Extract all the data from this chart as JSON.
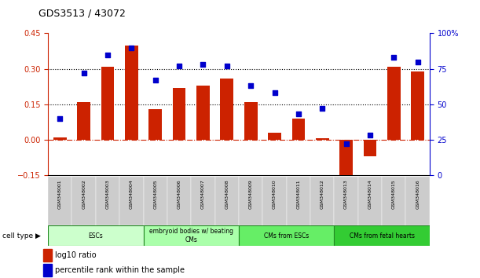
{
  "title": "GDS3513 / 43072",
  "samples": [
    "GSM348001",
    "GSM348002",
    "GSM348003",
    "GSM348004",
    "GSM348005",
    "GSM348006",
    "GSM348007",
    "GSM348008",
    "GSM348009",
    "GSM348010",
    "GSM348011",
    "GSM348012",
    "GSM348013",
    "GSM348014",
    "GSM348015",
    "GSM348016"
  ],
  "log10_ratio": [
    0.01,
    0.16,
    0.31,
    0.4,
    0.13,
    0.22,
    0.23,
    0.26,
    0.16,
    0.03,
    0.09,
    0.005,
    -0.2,
    -0.07,
    0.31,
    0.29
  ],
  "percentile_rank": [
    40,
    72,
    85,
    90,
    67,
    77,
    78,
    77,
    63,
    58,
    43,
    47,
    22,
    28,
    83,
    80
  ],
  "cell_type_groups": [
    {
      "label": "ESCs",
      "start": 0,
      "end": 3,
      "color": "#ccffcc"
    },
    {
      "label": "embryoid bodies w/ beating\nCMs",
      "start": 4,
      "end": 7,
      "color": "#aaffaa"
    },
    {
      "label": "CMs from ESCs",
      "start": 8,
      "end": 11,
      "color": "#66ee66"
    },
    {
      "label": "CMs from fetal hearts",
      "start": 12,
      "end": 15,
      "color": "#33cc33"
    }
  ],
  "ylim_left": [
    -0.15,
    0.45
  ],
  "ylim_right": [
    0,
    100
  ],
  "yticks_left": [
    -0.15,
    0.0,
    0.15,
    0.3,
    0.45
  ],
  "yticks_right": [
    0,
    25,
    50,
    75,
    100
  ],
  "hlines": [
    0.15,
    0.3
  ],
  "bar_color": "#cc2200",
  "dot_color": "#0000cc",
  "sample_box_color": "#cccccc",
  "group_border_color": "#228822",
  "left_axis_color": "#cc2200",
  "right_axis_color": "#0000cc"
}
